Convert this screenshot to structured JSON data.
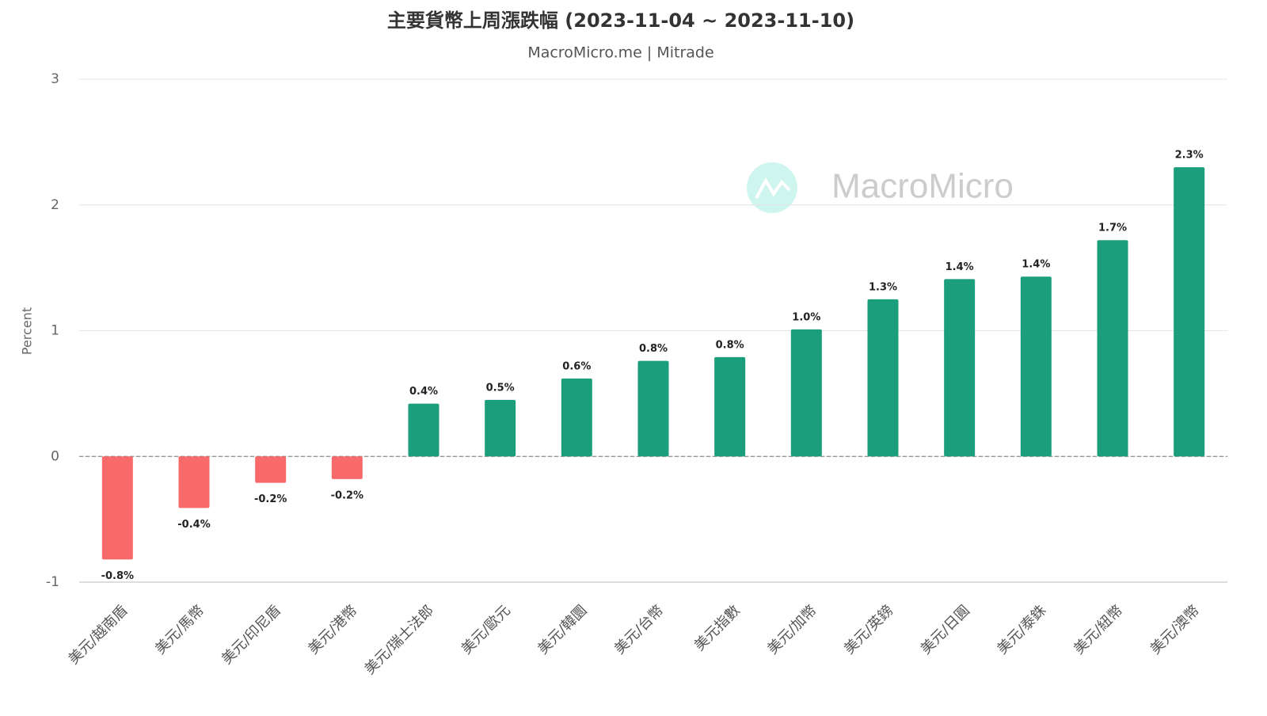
{
  "chart_data": {
    "type": "bar",
    "title": "主要貨幣上周漲跌幅 (2023-11-04 ~ 2023-11-10)",
    "subtitle": "MacroMicro.me | Mitrade",
    "watermark": "MacroMicro",
    "y_label": "Percent",
    "categories": [
      "美元/越南盾",
      "美元/馬幣",
      "美元/印尼盾",
      "美元/港幣",
      "美元/瑞士法郎",
      "美元/歐元",
      "美元/韓圜",
      "美元/台幣",
      "美元指數",
      "美元/加幣",
      "美元/英鎊",
      "美元/日圓",
      "美元/泰銖",
      "美元/紐幣",
      "美元/澳幣"
    ],
    "values": [
      -0.82,
      -0.41,
      -0.21,
      -0.18,
      0.42,
      0.45,
      0.62,
      0.76,
      0.79,
      1.01,
      1.25,
      1.41,
      1.43,
      1.72,
      2.3
    ],
    "value_labels": [
      "-0.8%",
      "-0.4%",
      "-0.2%",
      "-0.2%",
      "0.4%",
      "0.5%",
      "0.6%",
      "0.8%",
      "0.8%",
      "1.0%",
      "1.3%",
      "1.4%",
      "1.4%",
      "1.7%",
      "2.3%"
    ],
    "positive_color": "#1a9e7c",
    "negative_color": "#f86a6a",
    "ylim": [
      -1,
      3
    ],
    "yticks": [
      -1,
      0,
      1,
      2,
      3
    ],
    "grid": true
  }
}
